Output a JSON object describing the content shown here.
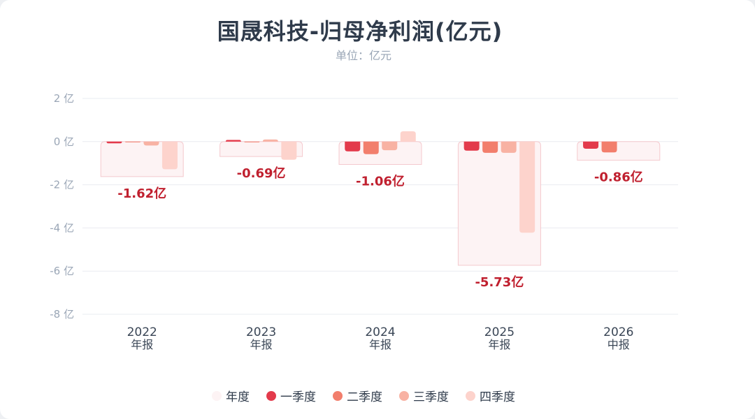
{
  "title": "国晟科技-归母净利润(亿元)",
  "subtitle": "单位：亿元",
  "colors": {
    "annual_fill": "#fdf3f4",
    "annual_stroke": "#f4c9ce",
    "q1": "#e33a4b",
    "q2": "#f27e6c",
    "q3": "#f8b2a3",
    "q4": "#fdd3cc",
    "label": "#c0202f"
  },
  "chart_data": {
    "type": "bar",
    "title": "国晟科技-归母净利润(亿元)",
    "subtitle": "单位：亿元",
    "unit": "亿",
    "ylim": [
      -8,
      2
    ],
    "yticks": [
      2,
      0,
      -2,
      -4,
      -6,
      -8
    ],
    "ytick_labels": [
      "2 亿",
      "0 亿",
      "-2 亿",
      "-4 亿",
      "-6 亿",
      "-8 亿"
    ],
    "grid": true,
    "legend_position": "bottom",
    "categories": [
      {
        "year": "2022",
        "period": "年报"
      },
      {
        "year": "2023",
        "period": "年报"
      },
      {
        "year": "2024",
        "period": "年报"
      },
      {
        "year": "2025",
        "period": "年报"
      },
      {
        "year": "2026",
        "period": "中报"
      }
    ],
    "annual_labels": [
      "-1.62亿",
      "-0.69亿",
      "-1.06亿",
      "-5.73亿",
      "-0.86亿"
    ],
    "series": [
      {
        "name": "年度",
        "values": [
          -1.62,
          -0.69,
          -1.06,
          -5.73,
          -0.86
        ]
      },
      {
        "name": "一季度",
        "values": [
          -0.08,
          0.08,
          -0.45,
          -0.42,
          -0.33
        ]
      },
      {
        "name": "二季度",
        "values": [
          -0.03,
          -0.03,
          -0.58,
          -0.52,
          -0.5
        ]
      },
      {
        "name": "三季度",
        "values": [
          -0.18,
          0.1,
          -0.4,
          -0.52,
          null
        ]
      },
      {
        "name": "四季度",
        "values": [
          -1.28,
          -0.84,
          0.48,
          -4.22,
          null
        ]
      }
    ]
  }
}
